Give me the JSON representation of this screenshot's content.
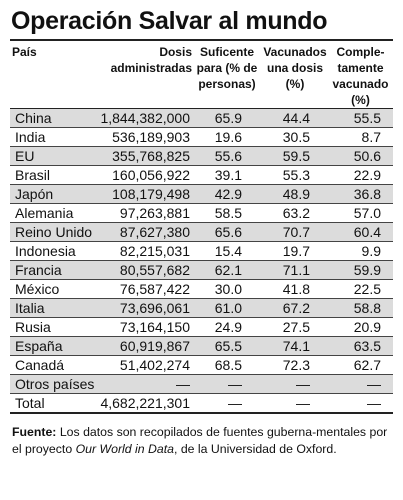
{
  "title": "Operación Salvar al mundo",
  "headers": {
    "country": "País",
    "doses": [
      "Dosis",
      "administradas"
    ],
    "sufficient": [
      "Suficente",
      "para (% de",
      "personas)"
    ],
    "one_dose": [
      "Vacunados",
      "una dosis",
      "(%)"
    ],
    "complete": [
      "Comple-",
      "tamente",
      "vacunado (%)"
    ]
  },
  "rows": [
    {
      "country": "China",
      "doses": "1,844,382,000",
      "sufficient": "65.9",
      "one_dose": "44.4",
      "complete": "55.5"
    },
    {
      "country": "India",
      "doses": "536,189,903",
      "sufficient": "19.6",
      "one_dose": "30.5",
      "complete": "8.7"
    },
    {
      "country": "EU",
      "doses": "355,768,825",
      "sufficient": "55.6",
      "one_dose": "59.5",
      "complete": "50.6"
    },
    {
      "country": "Brasil",
      "doses": "160,056,922",
      "sufficient": "39.1",
      "one_dose": "55.3",
      "complete": "22.9"
    },
    {
      "country": "Japón",
      "doses": "108,179,498",
      "sufficient": "42.9",
      "one_dose": "48.9",
      "complete": "36.8"
    },
    {
      "country": "Alemania",
      "doses": "97,263,881",
      "sufficient": "58.5",
      "one_dose": "63.2",
      "complete": "57.0"
    },
    {
      "country": "Reino Unido",
      "doses": "87,627,380",
      "sufficient": "65.6",
      "one_dose": "70.7",
      "complete": "60.4"
    },
    {
      "country": "Indonesia",
      "doses": "82,215,031",
      "sufficient": "15.4",
      "one_dose": "19.7",
      "complete": "9.9"
    },
    {
      "country": "Francia",
      "doses": "80,557,682",
      "sufficient": "62.1",
      "one_dose": "71.1",
      "complete": "59.9"
    },
    {
      "country": "México",
      "doses": "76,587,422",
      "sufficient": "30.0",
      "one_dose": "41.8",
      "complete": "22.5"
    },
    {
      "country": "Italia",
      "doses": "73,696,061",
      "sufficient": "61.0",
      "one_dose": "67.2",
      "complete": "58.8"
    },
    {
      "country": "Rusia",
      "doses": "73,164,150",
      "sufficient": "24.9",
      "one_dose": "27.5",
      "complete": "20.9"
    },
    {
      "country": "España",
      "doses": "60,919,867",
      "sufficient": "65.5",
      "one_dose": "74.1",
      "complete": "63.5"
    },
    {
      "country": "Canadá",
      "doses": "51,402,274",
      "sufficient": "68.5",
      "one_dose": "72.3",
      "complete": "62.7"
    },
    {
      "country": "Otros países",
      "doses": "—",
      "sufficient": "—",
      "one_dose": "—",
      "complete": "—"
    },
    {
      "country": "Total",
      "doses": "4,682,221,301",
      "sufficient": "—",
      "one_dose": "—",
      "complete": "—"
    }
  ],
  "source": {
    "label": "Fuente:",
    "text_before": " Los datos son recopilados de fuentes guberna-mentales por el proyecto ",
    "italic": "Our World in Data",
    "text_after": ", de la Universidad de Oxford."
  }
}
